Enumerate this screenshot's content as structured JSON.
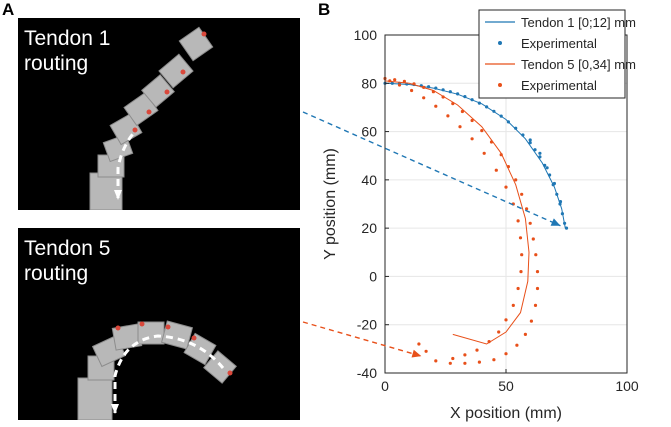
{
  "panels": {
    "a_letter": "A",
    "b_letter": "B",
    "photo_top_label": "Tendon 1\nrouting",
    "photo_bottom_label": "Tendon 5\nrouting"
  },
  "colors": {
    "tendon1": "#1f77b4",
    "tendon5": "#e8501a"
  },
  "chart_data": {
    "type": "scatter",
    "xlabel": "X position (mm)",
    "ylabel": "Y position (mm)",
    "xlim": [
      0,
      100
    ],
    "ylim": [
      -40,
      100
    ],
    "xticks": [
      "0",
      "50",
      "100"
    ],
    "yticks": [
      "-40",
      "-20",
      "0",
      "20",
      "40",
      "60",
      "80",
      "100"
    ],
    "grid": true,
    "legend_placement": "top-right",
    "legend": [
      {
        "label": "Tendon 1 [0;12] mm",
        "kind": "line",
        "color": "#1f77b4"
      },
      {
        "label": "Experimental",
        "kind": "dot",
        "color": "#1f77b4"
      },
      {
        "label": "Tendon 5 [0,34] mm",
        "kind": "line",
        "color": "#e8501a"
      },
      {
        "label": "Experimental",
        "kind": "dot",
        "color": "#e8501a"
      }
    ],
    "series": [
      {
        "name": "Tendon 1 [0;12] mm",
        "kind": "line",
        "color": "#1f77b4",
        "points": [
          [
            0,
            80
          ],
          [
            10,
            79.5
          ],
          [
            20,
            78
          ],
          [
            30,
            75.5
          ],
          [
            40,
            71.5
          ],
          [
            50,
            65
          ],
          [
            58,
            57
          ],
          [
            65,
            47
          ],
          [
            70,
            37
          ],
          [
            73,
            28
          ],
          [
            74.5,
            20
          ]
        ]
      },
      {
        "name": "Experimental",
        "kind": "dot",
        "color": "#1f77b4",
        "points": [
          [
            0,
            80
          ],
          [
            3,
            80
          ],
          [
            6,
            80
          ],
          [
            9,
            79.7
          ],
          [
            12,
            79.5
          ],
          [
            15,
            79
          ],
          [
            18,
            78.6
          ],
          [
            21,
            78
          ],
          [
            24,
            77.3
          ],
          [
            27,
            76.5
          ],
          [
            30,
            75.6
          ],
          [
            33,
            74.5
          ],
          [
            36,
            73.2
          ],
          [
            39,
            71.8
          ],
          [
            42,
            70.2
          ],
          [
            45,
            68.4
          ],
          [
            48,
            66.4
          ],
          [
            51,
            64
          ],
          [
            54,
            61.4
          ],
          [
            57,
            58.6
          ],
          [
            60,
            55.4
          ],
          [
            62,
            52.5
          ],
          [
            64,
            49.5
          ],
          [
            66,
            46
          ],
          [
            68,
            42
          ],
          [
            69.5,
            38
          ],
          [
            71,
            34
          ],
          [
            72.3,
            30
          ],
          [
            73.3,
            26
          ],
          [
            74.2,
            22
          ],
          [
            75,
            20
          ],
          [
            60,
            56.5
          ],
          [
            64,
            51
          ],
          [
            67,
            45
          ],
          [
            70,
            38.5
          ],
          [
            72.5,
            31
          ]
        ]
      },
      {
        "name": "Tendon 5 [0,34] mm",
        "kind": "line",
        "color": "#e8501a",
        "points": [
          [
            0,
            81
          ],
          [
            10,
            80
          ],
          [
            20,
            77
          ],
          [
            30,
            71
          ],
          [
            40,
            62
          ],
          [
            48,
            51
          ],
          [
            54,
            38
          ],
          [
            58,
            24
          ],
          [
            59.5,
            10
          ],
          [
            59,
            -2
          ],
          [
            56,
            -15
          ],
          [
            50,
            -23
          ],
          [
            42,
            -28
          ],
          [
            28,
            -24
          ]
        ]
      },
      {
        "name": "Experimental",
        "kind": "dot",
        "color": "#e8501a",
        "points": [
          [
            0,
            82
          ],
          [
            4,
            81.5
          ],
          [
            8,
            80.8
          ],
          [
            12,
            79.8
          ],
          [
            16,
            78.3
          ],
          [
            20,
            76.5
          ],
          [
            24,
            74.3
          ],
          [
            28,
            71.6
          ],
          [
            32,
            68.3
          ],
          [
            36,
            64.6
          ],
          [
            40,
            60.4
          ],
          [
            44,
            55.7
          ],
          [
            48,
            50.4
          ],
          [
            51,
            45.5
          ],
          [
            54,
            40
          ],
          [
            56.5,
            34
          ],
          [
            58.5,
            28
          ],
          [
            60,
            22
          ],
          [
            61.3,
            15.5
          ],
          [
            62.3,
            9
          ],
          [
            63,
            2
          ],
          [
            63,
            -5
          ],
          [
            62.2,
            -12
          ],
          [
            60.5,
            -18.5
          ],
          [
            58,
            -24
          ],
          [
            54.5,
            -28.5
          ],
          [
            50,
            -32
          ],
          [
            45,
            -34.5
          ],
          [
            39,
            -35.5
          ],
          [
            33,
            -36
          ],
          [
            27,
            -36
          ],
          [
            21,
            -35
          ],
          [
            14,
            -28
          ],
          [
            17,
            -31
          ],
          [
            43,
            -27
          ],
          [
            38,
            -30.5
          ],
          [
            33,
            -32.5
          ],
          [
            28,
            -34
          ],
          [
            47,
            -23
          ],
          [
            50,
            -18
          ],
          [
            53,
            -12
          ],
          [
            55,
            -5
          ],
          [
            56.2,
            2
          ],
          [
            56.5,
            9
          ],
          [
            56,
            16
          ],
          [
            55,
            23
          ],
          [
            53,
            30
          ],
          [
            50,
            37
          ],
          [
            46,
            44
          ],
          [
            41,
            51
          ],
          [
            36,
            57
          ],
          [
            31,
            62
          ],
          [
            26,
            66.5
          ],
          [
            21,
            70.5
          ],
          [
            16,
            74
          ],
          [
            11,
            77
          ],
          [
            6,
            79.3
          ],
          [
            2,
            81
          ]
        ]
      }
    ],
    "arrows": [
      {
        "color": "#1f77b4",
        "target": [
          72.5,
          21
        ]
      },
      {
        "color": "#e8501a",
        "target": [
          15,
          -33
        ]
      }
    ]
  }
}
